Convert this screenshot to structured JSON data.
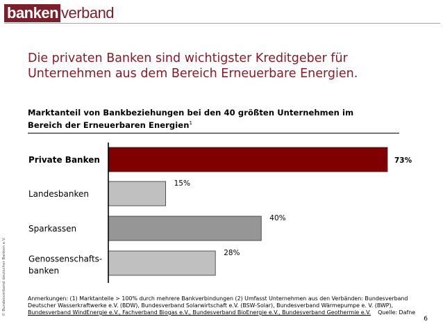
{
  "logo": {
    "part1": "banken",
    "part2": "verband"
  },
  "title": {
    "line1": "Die privaten Banken sind wichtigster Kreditgeber für",
    "line2": "Unternehmen aus dem Bereich Erneuerbare Energien."
  },
  "subtitle": {
    "line1": "Marktanteil von Bankbeziehungen bei den 40 größten Unternehmen im",
    "line2": "Bereich der Erneuerbaren Energien",
    "footnote_mark": "1"
  },
  "notes": {
    "line1": "Anmerkungen: (1) Marktanteile > 100% durch mehrere Bankverbindungen  (2) Umfasst Unternehmen aus den Verbänden: Bundesverband",
    "line2": "Deutscher Wasserkraftwerke e.V. (BDW), Bundesverband Solarwirtschaft e.V. (BSW-Solar), Bundesverband Wärmepumpe e. V. (BWP),",
    "line3": "Bundesverband WindEnergie e.V., Fachverband Biogas e.V., Bundesverband BioEnergie e.V., Bundesverband Geothermie e.V.",
    "source": "Quelle: Dafne"
  },
  "page_number": "6",
  "copyright": "© Bundesverband deutscher Banken e.V.",
  "colors": {
    "brand": "#7a1f2b",
    "title": "#8b1a26"
  },
  "chart_data": {
    "type": "bar",
    "orientation": "horizontal",
    "categories": [
      {
        "label": [
          "Private Banken"
        ],
        "bold": true
      },
      {
        "label": [
          "Landesbanken"
        ],
        "bold": false
      },
      {
        "label": [
          "Sparkassen"
        ],
        "bold": false
      },
      {
        "label": [
          "Genossenschafts-",
          "banken"
        ],
        "bold": false
      }
    ],
    "values": [
      73,
      15,
      40,
      28
    ],
    "value_labels": [
      "73%",
      "15%",
      "40%",
      "28%"
    ],
    "bar_colors": [
      "#800000",
      "#c0c0c0",
      "#969696",
      "#c0c0c0"
    ],
    "xlim": [
      0,
      73
    ],
    "grid": false,
    "legend": "none"
  }
}
